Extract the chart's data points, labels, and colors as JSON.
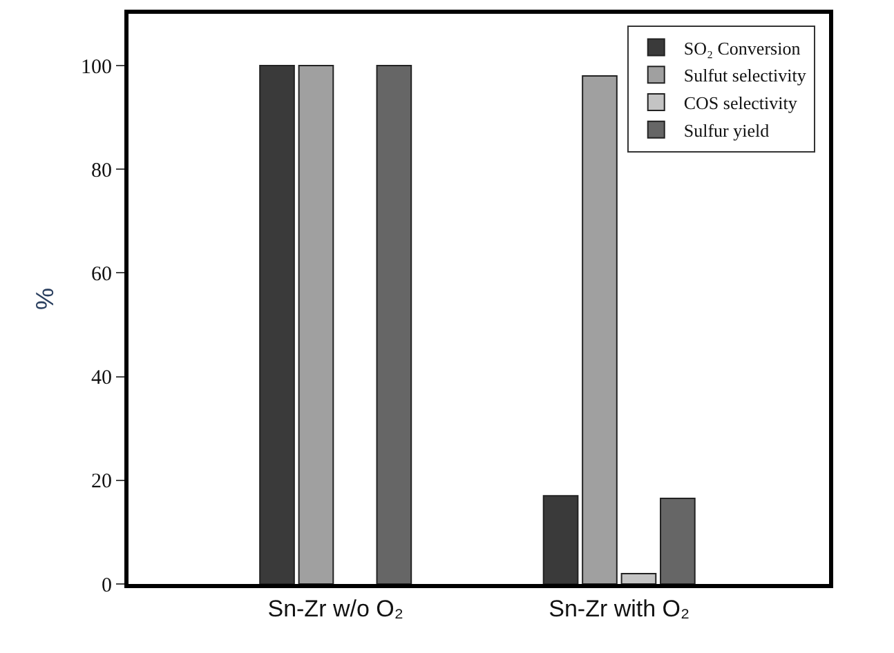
{
  "chart_data": {
    "type": "bar",
    "ylabel": "%",
    "categories": [
      "Sn-Zr w/o O₂",
      "Sn-Zr with O₂"
    ],
    "series": [
      {
        "name": "SO₂ Conversion",
        "color": "#3a3a3a",
        "values": [
          100,
          17
        ]
      },
      {
        "name": "Sulfut selectivity",
        "color": "#a0a0a0",
        "values": [
          100,
          98
        ]
      },
      {
        "name": "COS selectivity",
        "color": "#c4c4c4",
        "values": [
          null,
          2
        ]
      },
      {
        "name": "Sulfur yield",
        "color": "#666666",
        "values": [
          100,
          16.5
        ]
      }
    ],
    "ylim": [
      0,
      110
    ],
    "yticks": [
      0,
      20,
      40,
      60,
      80,
      100
    ],
    "legend": "top right"
  }
}
